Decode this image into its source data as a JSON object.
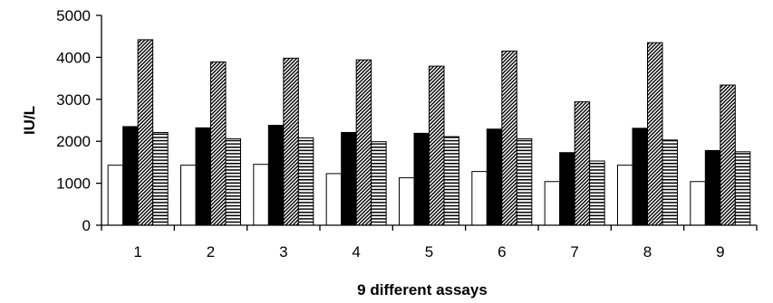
{
  "chart_data": {
    "type": "bar",
    "title": "",
    "xlabel": "9 different assays",
    "ylabel": "IU/L",
    "ylim": [
      0,
      5000
    ],
    "yticks": [
      0,
      1000,
      2000,
      3000,
      4000,
      5000
    ],
    "categories": [
      "1",
      "2",
      "3",
      "4",
      "5",
      "6",
      "7",
      "8",
      "9"
    ],
    "legend": "none",
    "grid": false,
    "series": [
      {
        "fill": "white",
        "color": "#ffffff",
        "values": [
          1430,
          1430,
          1450,
          1230,
          1130,
          1280,
          1040,
          1430,
          1040
        ]
      },
      {
        "fill": "solid",
        "color": "#000000",
        "values": [
          2350,
          2320,
          2380,
          2210,
          2190,
          2290,
          1730,
          2310,
          1780
        ]
      },
      {
        "fill": "diagonal-hatch",
        "color": "#000000",
        "values": [
          4420,
          3890,
          3980,
          3940,
          3790,
          4150,
          2940,
          4350,
          3340
        ]
      },
      {
        "fill": "horizontal-lines",
        "color": "#000000",
        "values": [
          2210,
          2060,
          2080,
          1990,
          2110,
          2060,
          1530,
          2030,
          1750
        ]
      }
    ]
  }
}
